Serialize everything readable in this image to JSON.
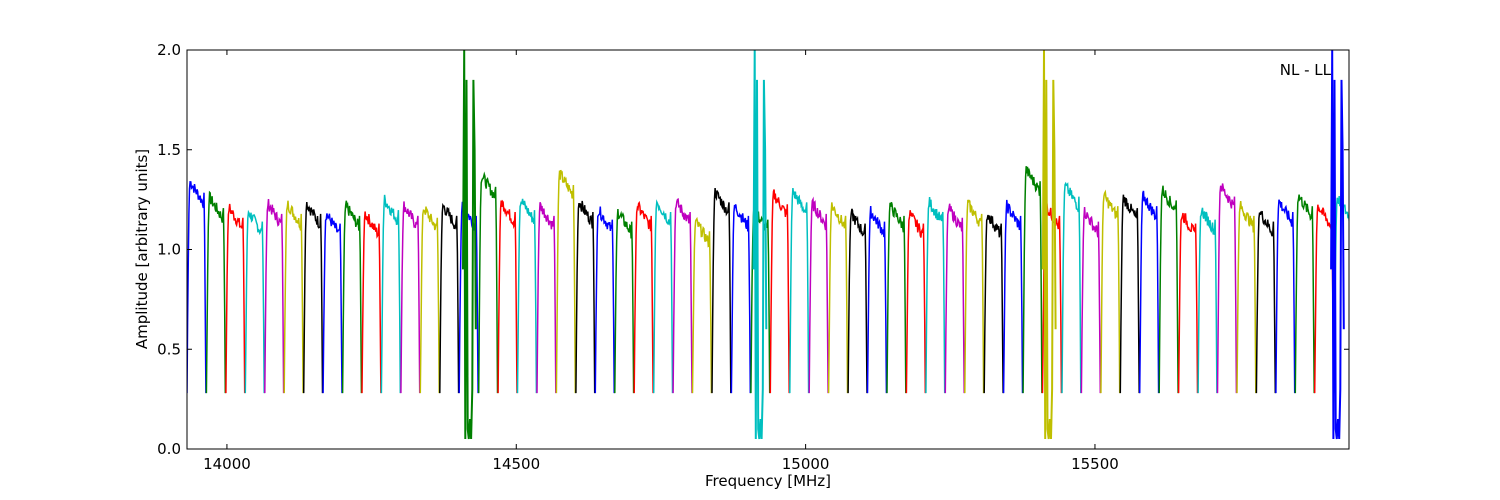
{
  "chart_data": {
    "type": "line",
    "title": "",
    "annotation": "NL - LL",
    "xlabel": "Frequency [MHz]",
    "ylabel": "Amplitude [arbitrary units]",
    "xlim": [
      13931,
      15939
    ],
    "ylim": [
      0,
      2.0
    ],
    "xticks": [
      14000,
      14500,
      15000,
      15500
    ],
    "xtick_labels": [
      "14000",
      "14500",
      "15000",
      "15500"
    ],
    "yticks": [
      0.0,
      0.5,
      1.0,
      1.5,
      2.0
    ],
    "ytick_labels": [
      "0.0",
      "0.5",
      "1.0",
      "1.5",
      "2.0"
    ],
    "grid": false,
    "color_cycle": [
      "#0000ff",
      "#008000",
      "#ff0000",
      "#00bfbf",
      "#bf00bf",
      "#bfbf00",
      "#000000"
    ],
    "segment_width_mhz": 33.6,
    "segment_start_mhz": 13931,
    "segment_edge_level": 0.28,
    "segment_levels": [
      1.32,
      1.24,
      1.19,
      1.17,
      1.21,
      1.21,
      1.21,
      1.16,
      1.2,
      1.16,
      1.23,
      1.2,
      1.19,
      1.2,
      1.2,
      1.35,
      1.22,
      1.23,
      1.2,
      1.36,
      1.22,
      1.18,
      1.17,
      1.2,
      1.22,
      1.22,
      1.12,
      1.27,
      1.2,
      1.18,
      1.26,
      1.27,
      1.21,
      1.2,
      1.16,
      1.17,
      1.2,
      1.16,
      1.22,
      1.19,
      1.21,
      1.16,
      1.2,
      1.38,
      1.2,
      1.3,
      1.17,
      1.25,
      1.24,
      1.25,
      1.28,
      1.16,
      1.18,
      1.3,
      1.2,
      1.17,
      1.22,
      1.25,
      1.2,
      1.24
    ],
    "features": [
      {
        "freq": 14420,
        "min": 0.05,
        "max": 2.0,
        "color": "#008000"
      },
      {
        "freq": 14922,
        "min": 0.05,
        "max": 2.0,
        "color": "#00bfbf"
      },
      {
        "freq": 15422,
        "min": 0.05,
        "max": 2.0,
        "color": "#bfbf00"
      },
      {
        "freq": 15920,
        "min": 0.05,
        "max": 2.0,
        "color": "#0000ff"
      }
    ]
  }
}
